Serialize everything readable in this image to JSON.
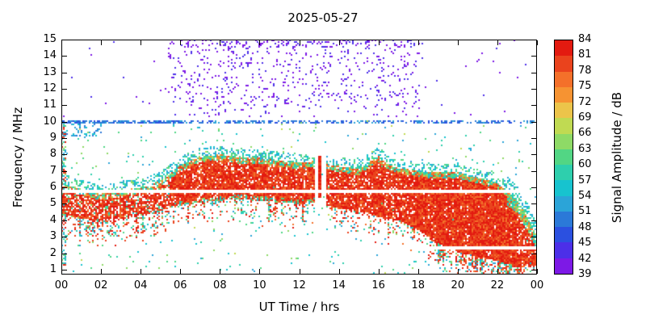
{
  "title": "2025-05-27",
  "axes": {
    "xlabel": "UT Time / hrs",
    "ylabel": "Frequency / MHz",
    "x_ticks": [
      "00",
      "02",
      "04",
      "06",
      "08",
      "10",
      "12",
      "14",
      "16",
      "18",
      "20",
      "22",
      "00"
    ],
    "x_tick_hours": [
      0,
      2,
      4,
      6,
      8,
      10,
      12,
      14,
      16,
      18,
      20,
      22,
      24
    ],
    "y_ticks": [
      1,
      2,
      3,
      4,
      5,
      6,
      7,
      8,
      9,
      10,
      11,
      12,
      13,
      14,
      15
    ]
  },
  "colorbar": {
    "label": "Signal Amplitude / dB",
    "ticks": [
      39,
      42,
      45,
      48,
      51,
      54,
      57,
      60,
      63,
      66,
      69,
      72,
      75,
      78,
      81,
      84
    ],
    "colors": [
      "#7d19e6",
      "#4c2fe8",
      "#2b50e0",
      "#2b79d8",
      "#2ba4d8",
      "#17c3cf",
      "#2ecfad",
      "#52d684",
      "#8eda66",
      "#c0da52",
      "#ecc44a",
      "#f69332",
      "#f4702a",
      "#ea431d",
      "#e31a10"
    ]
  },
  "chart_data": {
    "type": "heatmap",
    "title": "2025-05-27",
    "xlabel": "UT Time / hrs",
    "ylabel": "Frequency / MHz",
    "zlabel": "Signal Amplitude / dB",
    "x_range_hours": [
      0,
      24
    ],
    "y_range_mhz": [
      0.7,
      15
    ],
    "z_range_db": [
      39,
      84
    ],
    "main_echo_band": {
      "description": "Strong ionospheric echo trace; hourly keyframes of band envelope, peak amplitudes 78-84 dB (red) with cyan/green fringe 51-66 dB on edges",
      "hours": [
        0,
        1,
        2,
        3,
        4,
        5,
        6,
        7,
        8,
        9,
        10,
        11,
        12,
        12.8,
        13.4,
        14,
        15,
        16,
        16.5,
        17,
        18,
        19,
        20,
        21,
        22,
        23,
        23.5,
        24
      ],
      "f_top_mhz": [
        6.3,
        5.9,
        5.6,
        5.8,
        6.0,
        6.4,
        7.3,
        7.9,
        8.0,
        7.8,
        7.8,
        7.6,
        7.5,
        7.6,
        7.4,
        7.3,
        7.1,
        7.9,
        7.4,
        7.2,
        7.0,
        6.9,
        6.9,
        6.6,
        6.3,
        5.2,
        4.2,
        3.0
      ],
      "f_bottom_mhz": [
        4.4,
        4.1,
        4.0,
        4.1,
        4.3,
        4.6,
        4.9,
        5.1,
        5.2,
        5.3,
        5.2,
        5.1,
        5.0,
        5.1,
        4.9,
        4.7,
        4.5,
        4.2,
        4.1,
        4.0,
        3.4,
        2.6,
        2.1,
        1.8,
        1.5,
        1.2,
        1.1,
        1.1
      ],
      "peak_amp_db": 84
    },
    "gap_hours": [
      12.82,
      13.38
    ],
    "spike": {
      "hour": 13.06,
      "f_mhz": [
        5.4,
        7.9
      ]
    },
    "white_lines_mhz": [
      5.75,
      2.3
    ],
    "rfi_line_mhz": 10.0,
    "spread_noise_region": {
      "hours": [
        5.4,
        18.1
      ],
      "f_mhz": [
        10.3,
        15.0
      ],
      "amp_db": [
        39,
        45
      ]
    },
    "seed": 20250527
  }
}
